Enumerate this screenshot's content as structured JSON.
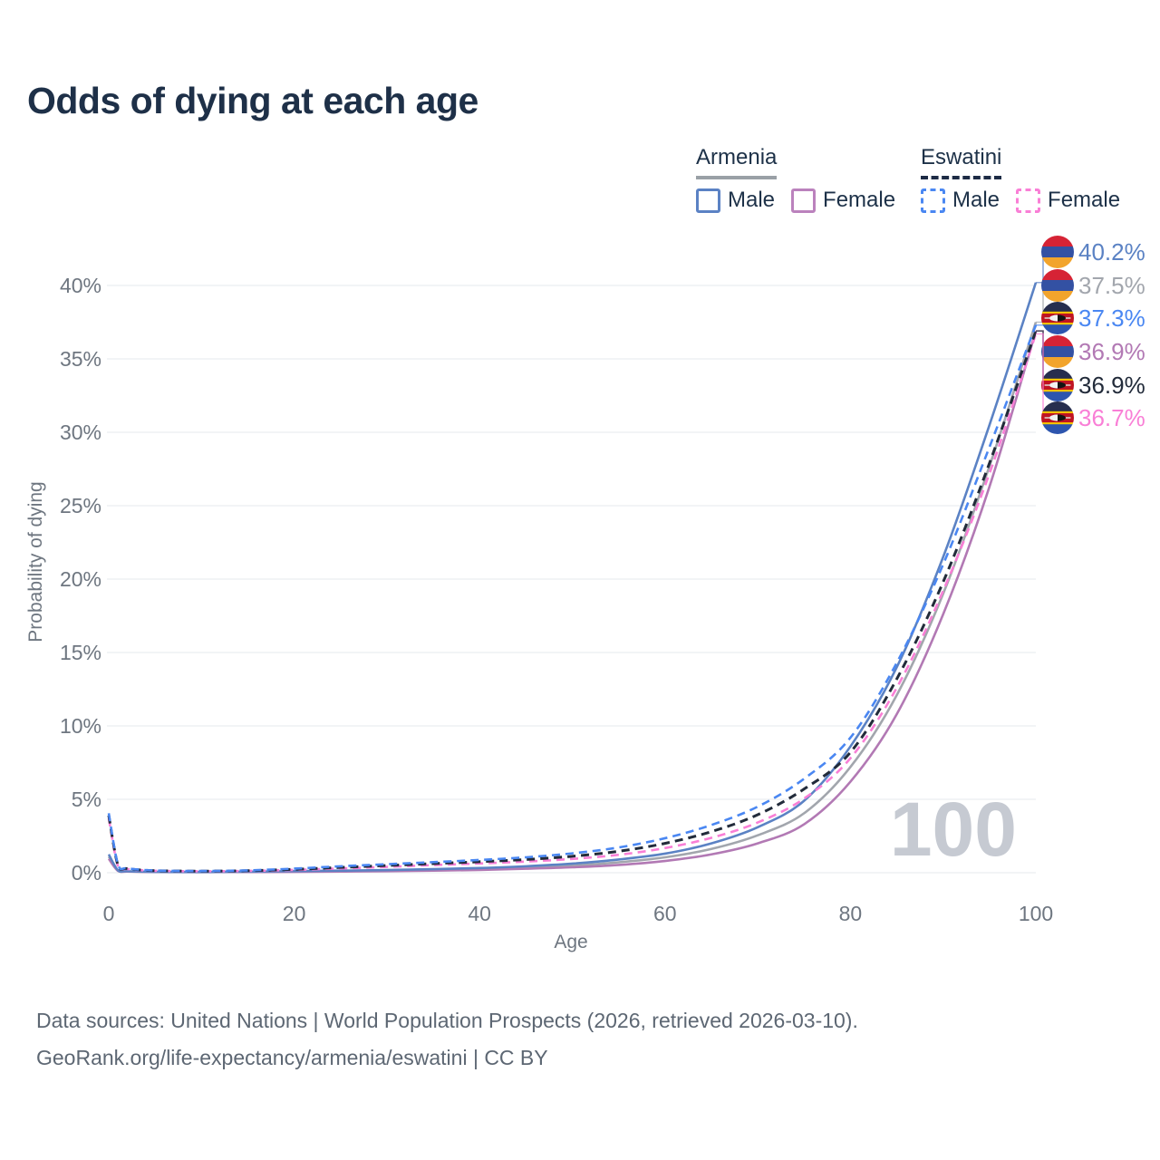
{
  "page": {
    "title": "Odds of dying at each age",
    "watermark_age": "100",
    "footer_line1": "Data sources: United Nations | World Population Prospects (2026, retrieved 2026-03-10).",
    "footer_line2": "GeoRank.org/life-expectancy/armenia/eswatini | CC BY"
  },
  "legend": {
    "groups": [
      {
        "country": "Armenia",
        "style": "solid",
        "underline_color": "#9aa0a6",
        "items": [
          {
            "label": "Male",
            "color": "#5b82c4",
            "dashed": false
          },
          {
            "label": "Female",
            "color": "#bb82bd",
            "dashed": false
          }
        ]
      },
      {
        "country": "Eswatini",
        "style": "dashed",
        "underline_color": "#1d2b45",
        "items": [
          {
            "label": "Male",
            "color": "#4a87f2",
            "dashed": true
          },
          {
            "label": "Female",
            "color": "#f97fd6",
            "dashed": true
          }
        ]
      }
    ]
  },
  "chart_data": {
    "type": "line",
    "title": "Odds of dying at each age",
    "xlabel": "Age",
    "ylabel": "Probability of dying",
    "xlim": [
      0,
      100
    ],
    "ylim": [
      0,
      42
    ],
    "grid": true,
    "legend_position": "top-right",
    "x_ticks": [
      {
        "value": 0,
        "label": "0"
      },
      {
        "value": 20,
        "label": "20"
      },
      {
        "value": 40,
        "label": "40"
      },
      {
        "value": 60,
        "label": "60"
      },
      {
        "value": 80,
        "label": "80"
      },
      {
        "value": 100,
        "label": "100"
      }
    ],
    "y_ticks": [
      {
        "value": 0,
        "label": "0%"
      },
      {
        "value": 5,
        "label": "5%"
      },
      {
        "value": 10,
        "label": "10%"
      },
      {
        "value": 15,
        "label": "15%"
      },
      {
        "value": 20,
        "label": "20%"
      },
      {
        "value": 25,
        "label": "25%"
      },
      {
        "value": 30,
        "label": "30%"
      },
      {
        "value": 35,
        "label": "35%"
      },
      {
        "value": 40,
        "label": "40%"
      }
    ],
    "x": [
      0,
      1,
      2,
      5,
      10,
      15,
      20,
      25,
      30,
      35,
      40,
      45,
      50,
      55,
      60,
      65,
      70,
      75,
      80,
      85,
      90,
      95,
      100
    ],
    "series": [
      {
        "name": "Armenia Male",
        "slug": "armenia-male",
        "country": "Armenia",
        "sex": "Male",
        "color": "#5b82c4",
        "dashed": false,
        "flag": "armenia",
        "end_label": "40.2%",
        "end_value": 40.2,
        "values": [
          1.25,
          0.16,
          0.1,
          0.06,
          0.05,
          0.07,
          0.11,
          0.14,
          0.18,
          0.24,
          0.32,
          0.44,
          0.62,
          0.9,
          1.3,
          2.0,
          3.1,
          4.9,
          8.6,
          14.0,
          21.5,
          30.5,
          40.2
        ]
      },
      {
        "name": "Armenia Both sexes",
        "slug": "armenia-both",
        "country": "Armenia",
        "sex": "Both sexes",
        "color": "#a2a6ad",
        "dashed": false,
        "flag": "armenia",
        "end_label": "37.5%",
        "end_value": 37.5,
        "values": [
          1.1,
          0.14,
          0.09,
          0.055,
          0.045,
          0.06,
          0.09,
          0.11,
          0.14,
          0.19,
          0.26,
          0.35,
          0.49,
          0.71,
          1.05,
          1.62,
          2.55,
          4.05,
          7.2,
          12.1,
          19.0,
          27.7,
          37.5
        ]
      },
      {
        "name": "Eswatini Male",
        "slug": "eswatini-male",
        "country": "Eswatini",
        "sex": "Male",
        "color": "#4a87f2",
        "dashed": true,
        "flag": "eswatini",
        "end_label": "37.3%",
        "end_value": 37.3,
        "values": [
          4.05,
          0.55,
          0.3,
          0.15,
          0.12,
          0.16,
          0.28,
          0.44,
          0.58,
          0.72,
          0.87,
          1.05,
          1.32,
          1.72,
          2.35,
          3.25,
          4.5,
          6.4,
          9.2,
          14.3,
          21.0,
          29.0,
          37.3
        ]
      },
      {
        "name": "Armenia Female",
        "slug": "armenia-female",
        "country": "Armenia",
        "sex": "Female",
        "color": "#b279b4",
        "dashed": false,
        "flag": "armenia",
        "end_label": "36.9%",
        "end_value": 36.9,
        "values": [
          0.95,
          0.12,
          0.08,
          0.05,
          0.04,
          0.05,
          0.06,
          0.08,
          0.1,
          0.14,
          0.19,
          0.27,
          0.37,
          0.53,
          0.8,
          1.25,
          2.0,
          3.3,
          6.2,
          10.8,
          17.6,
          26.3,
          36.9
        ]
      },
      {
        "name": "Eswatini Both sexes",
        "slug": "eswatini-both",
        "country": "Eswatini",
        "sex": "Both sexes",
        "color": "#222b3a",
        "dashed": true,
        "flag": "eswatini",
        "end_label": "36.9%",
        "end_value": 36.9,
        "values": [
          3.9,
          0.5,
          0.28,
          0.14,
          0.11,
          0.14,
          0.23,
          0.36,
          0.49,
          0.62,
          0.75,
          0.9,
          1.12,
          1.46,
          2.0,
          2.8,
          3.95,
          5.7,
          8.2,
          13.2,
          19.8,
          27.9,
          36.9
        ]
      },
      {
        "name": "Eswatini Female",
        "slug": "eswatini-female",
        "country": "Eswatini",
        "sex": "Female",
        "color": "#f97fd6",
        "dashed": true,
        "flag": "eswatini",
        "end_label": "36.7%",
        "end_value": 36.7,
        "values": [
          3.7,
          0.45,
          0.25,
          0.13,
          0.1,
          0.12,
          0.19,
          0.29,
          0.4,
          0.52,
          0.63,
          0.76,
          0.94,
          1.22,
          1.68,
          2.38,
          3.42,
          5.05,
          7.8,
          12.6,
          19.2,
          27.2,
          36.7
        ]
      }
    ]
  }
}
